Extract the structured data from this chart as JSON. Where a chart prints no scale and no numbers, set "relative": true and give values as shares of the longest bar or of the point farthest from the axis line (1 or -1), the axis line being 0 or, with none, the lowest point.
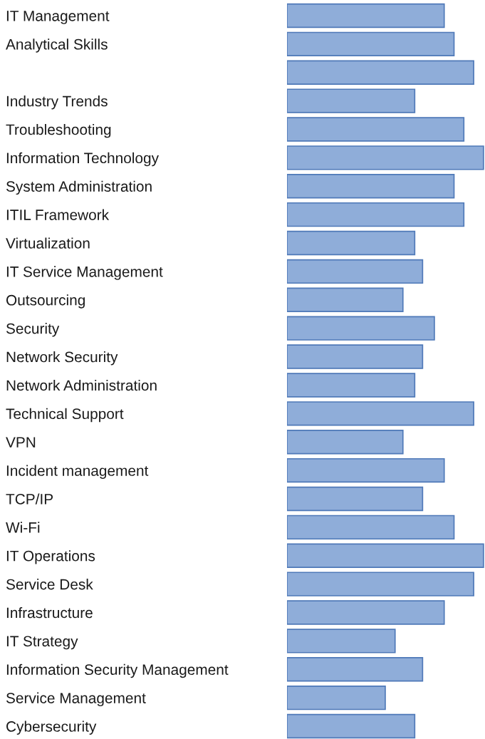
{
  "chart_data": {
    "type": "bar",
    "orientation": "horizontal",
    "relative": true,
    "color": "#8fadd9",
    "categories": [
      "IT Management",
      "Analytical Skills",
      null,
      "Industry Trends",
      "Troubleshooting",
      "Information Technology",
      "System Administration",
      "ITIL Framework",
      "Virtualization",
      "IT Service Management",
      "Outsourcing",
      "Security",
      "Network Security",
      "Network Administration",
      "Technical Support",
      "VPN",
      "Incident management",
      "TCP/IP",
      "Wi-Fi",
      "IT Operations",
      "Service Desk",
      "Infrastructure",
      "IT Strategy",
      "Information Security Management",
      "Service Management",
      "Cybersecurity"
    ],
    "values": [
      0.8,
      0.85,
      0.95,
      0.65,
      0.9,
      1,
      0.85,
      0.9,
      0.65,
      0.69,
      0.59,
      0.75,
      0.69,
      0.65,
      0.95,
      0.59,
      0.8,
      0.69,
      0.85,
      1,
      0.95,
      0.8,
      0.55,
      0.69,
      0.5,
      0.65
    ]
  }
}
